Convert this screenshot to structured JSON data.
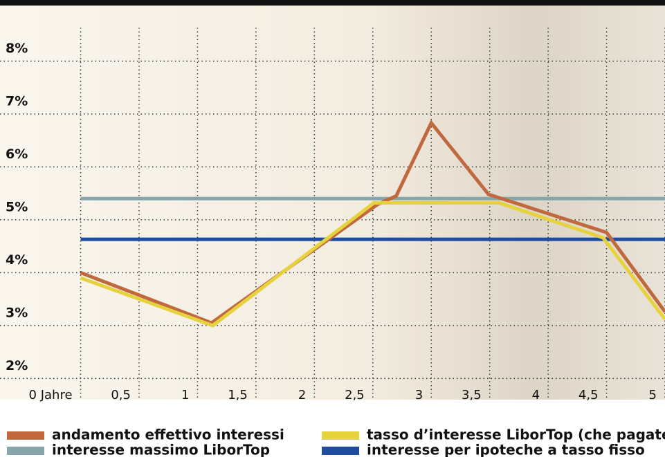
{
  "chart_data": {
    "type": "line",
    "xlim": [
      -0.69,
      5
    ],
    "ylim": [
      1.6,
      9.05
    ],
    "xticks": [
      {
        "value": 0,
        "label": "0 Jahre"
      },
      {
        "value": 0.5,
        "label": "0,5"
      },
      1,
      {
        "value": 1.5,
        "label": "1,5"
      },
      2,
      {
        "value": 2.5,
        "label": "2,5"
      },
      3,
      {
        "value": 3.5,
        "label": "3,5"
      },
      4,
      {
        "value": 4.5,
        "label": "4,5"
      },
      5
    ],
    "yticks": [
      {
        "value": 2,
        "label": "2%"
      },
      {
        "value": 3,
        "label": "3%"
      },
      {
        "value": 4,
        "label": "4%"
      },
      {
        "value": 5,
        "label": "5%"
      },
      {
        "value": 6,
        "label": "6%"
      },
      {
        "value": 7,
        "label": "7%"
      },
      {
        "value": 8,
        "label": "8%"
      }
    ],
    "grid": true,
    "series": [
      {
        "name": "andamento effettivo interessi",
        "color": "#c0683e",
        "x": [
          0,
          1.12,
          2.54,
          2.7,
          3.0,
          3.49,
          4.5,
          5
        ],
        "values": [
          4.0,
          3.05,
          5.29,
          5.45,
          6.83,
          5.48,
          4.76,
          3.26
        ]
      },
      {
        "name": "tasso d’interesse LiborTop (che pagate)",
        "color": "#e6d23c",
        "x": [
          0,
          1.13,
          2.51,
          3.58,
          4.47,
          5
        ],
        "values": [
          3.9,
          3.0,
          5.32,
          5.32,
          4.66,
          3.12
        ]
      },
      {
        "name": "interesse massimo LiborTop",
        "color": "#86a6ab",
        "x": [
          0,
          5
        ],
        "values": [
          5.4,
          5.4
        ]
      },
      {
        "name": "interesse per ipoteche a tasso fisso",
        "color": "#1f4c9c",
        "x": [
          0,
          5
        ],
        "values": [
          4.63,
          4.63
        ]
      }
    ]
  }
}
